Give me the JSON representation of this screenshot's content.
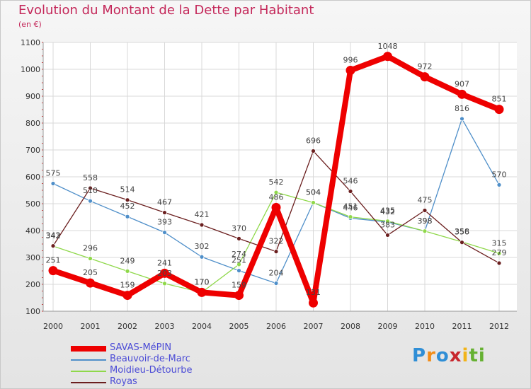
{
  "chart_data": {
    "type": "line",
    "title": "Evolution du Montant de la Dette par Habitant",
    "subtitle": "(en €)",
    "x": [
      "2000",
      "2001",
      "2002",
      "2003",
      "2004",
      "2005",
      "2006",
      "2007",
      "2008",
      "2009",
      "2010",
      "2011",
      "2012"
    ],
    "ylim": [
      100,
      1100
    ],
    "yticks": [
      100,
      200,
      300,
      400,
      500,
      600,
      700,
      800,
      900,
      1000,
      1100
    ],
    "grid": true,
    "legend_position": "bottom-left",
    "series": [
      {
        "name": "SAVAS-MéPIN",
        "color": "#ee0000",
        "values": [
          251,
          205,
          159,
          241,
          170,
          159,
          486,
          131,
          996,
          1048,
          972,
          907,
          851
        ]
      },
      {
        "name": "Beauvoir-de-Marc",
        "color": "#4f8fc9",
        "values": [
          575,
          510,
          452,
          393,
          302,
          251,
          204,
          504,
          446,
          432,
          398,
          816,
          570
        ]
      },
      {
        "name": "Moidieu-Détourbe",
        "color": "#8fd84a",
        "values": [
          342,
          296,
          249,
          203,
          170,
          274,
          542,
          504,
          451,
          435,
          398,
          358,
          315
        ]
      },
      {
        "name": "Royas",
        "color": "#6b1f1f",
        "values": [
          343,
          558,
          514,
          467,
          421,
          370,
          322,
          696,
          546,
          383,
          475,
          356,
          279
        ]
      }
    ]
  },
  "logo": {
    "letters": [
      "P",
      "r",
      "o",
      "x",
      "i",
      "t",
      "i"
    ],
    "colors": [
      "#2f8ed6",
      "#f28c18",
      "#2f8ed6",
      "#c8272d",
      "#f2b418",
      "#66b132",
      "#66b132"
    ]
  }
}
